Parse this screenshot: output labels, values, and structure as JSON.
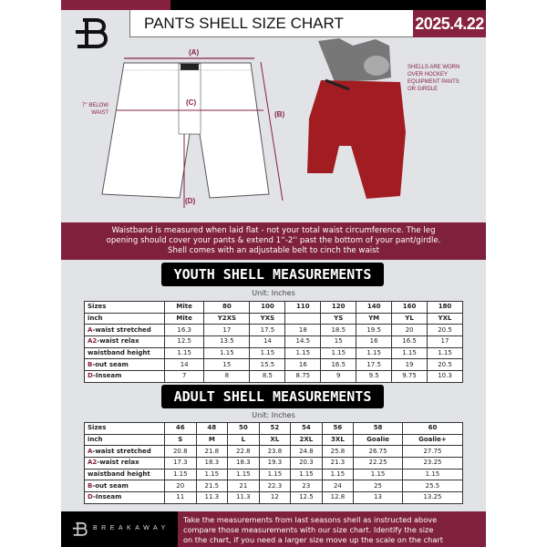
{
  "header": {
    "title": "PANTS SHELL SIZE CHART",
    "date": "2025.4.22",
    "logo_text": "B"
  },
  "diagram": {
    "label_a": "(A)",
    "label_b": "(B)",
    "label_c": "(C)",
    "label_d": "(D)",
    "below_waist_line1": "7'' BELOW",
    "below_waist_line2": "WAIST",
    "note": [
      "SHELLS ARE WORN",
      "OVER HOCKEY",
      "EQUIPMENT PANTS",
      "OR GIRDLE"
    ]
  },
  "info_band": [
    "Waistband is measured when laid flat - not your total waist circumference. The leg",
    "opening should cover your pants & extend 1''-2'' past the bottom of your pant/girdle.",
    "Shell comes with an adjustable belt to cinch the waist"
  ],
  "youth": {
    "title": "YOUTH SHELL MEASUREMENTS",
    "unit": "Unit: Inches",
    "rows": [
      {
        "prefix": "",
        "label": "Sizes",
        "values": [
          "Mite",
          "80",
          "100",
          "110",
          "120",
          "140",
          "160",
          "180"
        ]
      },
      {
        "prefix": "",
        "label": "inch",
        "values": [
          "Mite",
          "Y2XS",
          "YXS",
          "",
          "YS",
          "YM",
          "YL",
          "YXL"
        ]
      },
      {
        "prefix": "A",
        "label": "-waist stretched",
        "values": [
          "16.3",
          "17",
          "17.5",
          "18",
          "18.5",
          "19.5",
          "20",
          "20.5"
        ]
      },
      {
        "prefix": "A2",
        "label": "-waist relax",
        "values": [
          "12.5",
          "13.5",
          "14",
          "14.5",
          "15",
          "16",
          "16.5",
          "17"
        ]
      },
      {
        "prefix": "",
        "label": "waistband height",
        "values": [
          "1.15",
          "1.15",
          "1.15",
          "1.15",
          "1.15",
          "1.15",
          "1.15",
          "1.15"
        ]
      },
      {
        "prefix": "B",
        "label": "-out seam",
        "values": [
          "14",
          "15",
          "15.5",
          "16",
          "16.5",
          "17.5",
          "19",
          "20.5"
        ]
      },
      {
        "prefix": "D",
        "label": "-Inseam",
        "values": [
          "7",
          "8",
          "8.5",
          "8.75",
          "9",
          "9.5",
          "9.75",
          "10.3"
        ]
      }
    ]
  },
  "adult": {
    "title": "ADULT SHELL MEASUREMENTS",
    "unit": "Unit: Inches",
    "rows": [
      {
        "prefix": "",
        "label": "Sizes",
        "values": [
          "46",
          "48",
          "50",
          "52",
          "54",
          "56",
          "58",
          "60"
        ]
      },
      {
        "prefix": "",
        "label": "inch",
        "values": [
          "S",
          "M",
          "L",
          "XL",
          "2XL",
          "3XL",
          "Goalie",
          "Goalie+"
        ]
      },
      {
        "prefix": "A",
        "label": "-waist stretched",
        "values": [
          "20.8",
          "21.8",
          "22.8",
          "23.8",
          "24.8",
          "25.8",
          "26.75",
          "27.75"
        ]
      },
      {
        "prefix": "A2",
        "label": "-waist relax",
        "values": [
          "17.3",
          "18.3",
          "18.3",
          "19.3",
          "20.3",
          "21.3",
          "22.25",
          "23.25"
        ]
      },
      {
        "prefix": "",
        "label": "waistband height",
        "values": [
          "1.15",
          "1.15",
          "1.15",
          "1.15",
          "1.15",
          "1.15",
          "1.15",
          "1.15"
        ]
      },
      {
        "prefix": "B",
        "label": "-out seam",
        "values": [
          "20",
          "21.5",
          "21",
          "22.3",
          "23",
          "24",
          "25",
          "25.5"
        ]
      },
      {
        "prefix": "D",
        "label": "-Inseam",
        "values": [
          "11",
          "11.3",
          "11.3",
          "12",
          "12.5",
          "12.8",
          "13",
          "13.25"
        ]
      }
    ]
  },
  "footer": {
    "brand": "BREAKAWAY",
    "text": [
      "Take the measurements from last seasons shell as instructed above",
      "compare those measurements  with our size chart. Identify the size",
      "on the chart, if you need a larger size move up the scale on the chart"
    ]
  },
  "colors": {
    "accent": "#86223f",
    "background": "#e2e3e7",
    "dark": "#000000"
  }
}
